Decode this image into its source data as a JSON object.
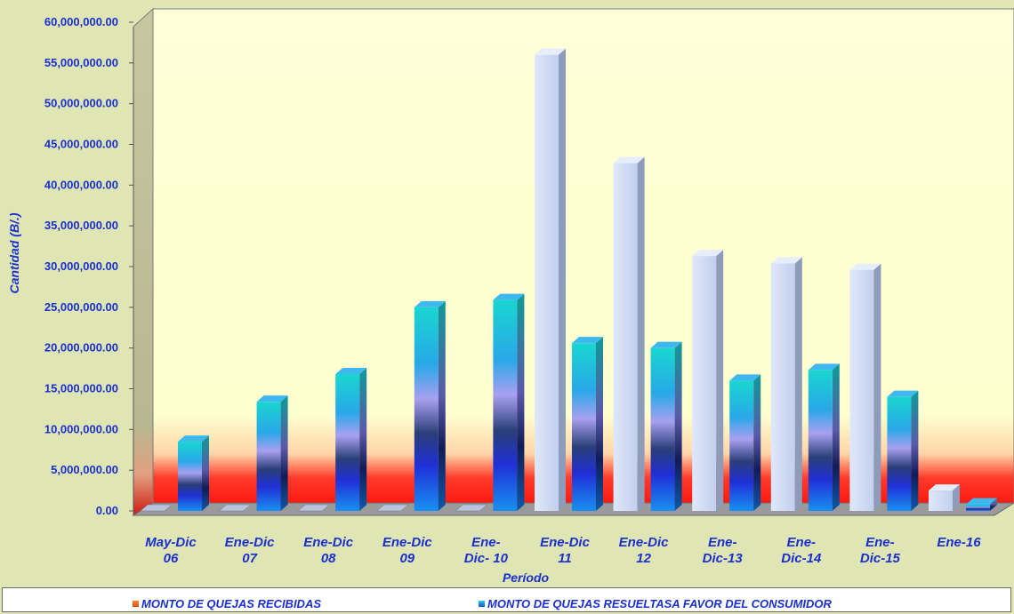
{
  "chart_data": {
    "type": "bar",
    "title": "",
    "xlabel": "Período",
    "ylabel": "Cantidad (B/.)",
    "ylim": [
      0,
      60000000
    ],
    "yticks": [
      "0.00",
      "5,000,000.00",
      "10,000,000.00",
      "15,000,000.00",
      "20,000,000.00",
      "25,000,000.00",
      "30,000,000.00",
      "35,000,000.00",
      "40,000,000.00",
      "45,000,000.00",
      "50,000,000.00",
      "55,000,000.00",
      "60,000,000.00"
    ],
    "categories": [
      [
        "May-Dic",
        "06"
      ],
      [
        "Ene-Dic",
        "07"
      ],
      [
        "Ene-Dic",
        "08"
      ],
      [
        "Ene-Dic",
        "09"
      ],
      [
        "Ene-",
        "Dic- 10"
      ],
      [
        "Ene-Dic",
        "11"
      ],
      [
        "Ene-Dic",
        "12"
      ],
      [
        "Ene-",
        "Dic-13"
      ],
      [
        "Ene-",
        "Dic-14"
      ],
      [
        "Ene-",
        "Dic-15"
      ],
      [
        "Ene-16"
      ]
    ],
    "series": [
      {
        "name": "MONTO DE QUEJAS RECIBIDAS",
        "color": "#c8d4f0",
        "values": [
          0,
          0,
          0,
          0,
          0,
          56000000,
          42700000,
          31300000,
          30400000,
          29600000,
          2500000
        ]
      },
      {
        "name": "MONTO DE QUEJAS RESUELTASA FAVOR DEL CONSUMIDOR",
        "color": "#1f78e8",
        "values": [
          8500000,
          13400000,
          16800000,
          25000000,
          25900000,
          20600000,
          20000000,
          16000000,
          17300000,
          14000000,
          800000
        ]
      }
    ],
    "grid": false,
    "legend": "bottom"
  }
}
